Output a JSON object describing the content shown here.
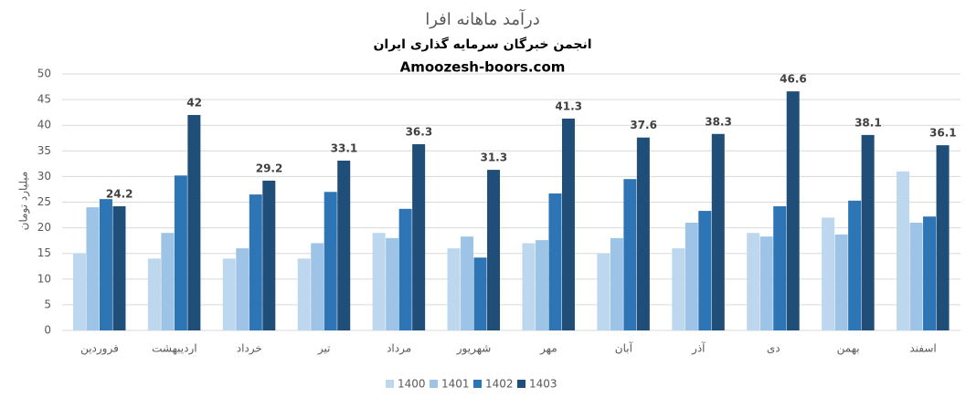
{
  "chart_data": {
    "type": "bar",
    "title": "درآمد ماهانه افرا",
    "subtitle": "انجمن خبرگان سرمایه گذاری ایران",
    "source": "Amoozesh-boors.com",
    "y_label": "میلیارد تومان",
    "categories": [
      "فروردین",
      "اردیبهشت",
      "خرداد",
      "تیر",
      "مرداد",
      "شهریور",
      "مهر",
      "آبان",
      "آذر",
      "دی",
      "بهمن",
      "اسفند"
    ],
    "series": [
      {
        "name": "1400",
        "color": "#bdd7ee",
        "values": [
          15,
          14,
          14,
          14,
          19,
          16,
          17,
          15,
          16,
          19,
          22,
          31
        ]
      },
      {
        "name": "1401",
        "color": "#9dc3e6",
        "values": [
          24,
          19,
          16,
          17,
          18,
          18.3,
          17.6,
          18,
          21,
          18.3,
          18.7,
          21
        ]
      },
      {
        "name": "1402",
        "color": "#2e75b6",
        "values": [
          25.6,
          30.2,
          26.5,
          27,
          23.7,
          14.2,
          26.7,
          29.5,
          23.3,
          24.2,
          25.3,
          22.2
        ]
      },
      {
        "name": "1403",
        "color": "#1f4e79",
        "data_labels": true,
        "values": [
          24.2,
          42,
          29.2,
          33.1,
          36.3,
          31.3,
          41.3,
          37.6,
          38.3,
          46.6,
          38.1,
          36.1
        ]
      }
    ],
    "ylim": [
      0,
      50
    ],
    "yticks": [
      0,
      5,
      10,
      15,
      20,
      25,
      30,
      35,
      40,
      45,
      50
    ],
    "grid": true,
    "legend": "bottom"
  }
}
